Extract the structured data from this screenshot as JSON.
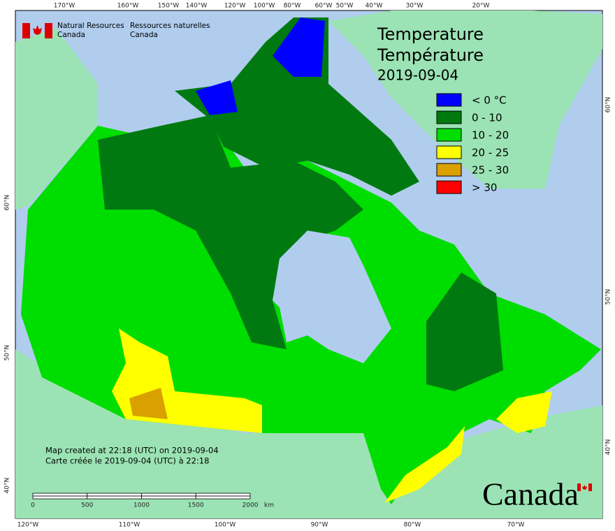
{
  "header": {
    "title_en": "Temperature",
    "title_fr": "Température",
    "date": "2019-09-04"
  },
  "agency": {
    "en_line1": "Natural Resources",
    "en_line2": "Canada",
    "fr_line1": "Ressources naturelles",
    "fr_line2": "Canada"
  },
  "legend": [
    {
      "label": "< 0 °C",
      "color": "#0000ff"
    },
    {
      "label": "0 - 10",
      "color": "#007a10"
    },
    {
      "label": "10 - 20",
      "color": "#00dd00"
    },
    {
      "label": "20 - 25",
      "color": "#ffff00"
    },
    {
      "label": "25 - 30",
      "color": "#d9a000"
    },
    {
      "label": "> 30",
      "color": "#ff0000"
    }
  ],
  "top_labels": [
    "170°W",
    "160°W",
    "150°W",
    "140°W",
    "120°W",
    "100°W",
    "80°W",
    "60°W",
    "50°W",
    "40°W",
    "30°W",
    "20°W"
  ],
  "bottom_labels": [
    "120°W",
    "110°W",
    "100°W",
    "90°W",
    "80°W",
    "70°W"
  ],
  "left_labels": [
    "60°N",
    "50°N",
    "40°N"
  ],
  "right_labels": [
    "60°N",
    "50°N",
    "40°N"
  ],
  "notes": [
    "Map created at 22:18 (UTC) on 2019-09-04",
    "Carte créée le 2019-09-04 (UTC) à 22:18"
  ],
  "scale": {
    "ticks": [
      "0",
      "500",
      "1000",
      "1500",
      "2000"
    ],
    "unit": "km"
  },
  "wordmark": "Canada"
}
